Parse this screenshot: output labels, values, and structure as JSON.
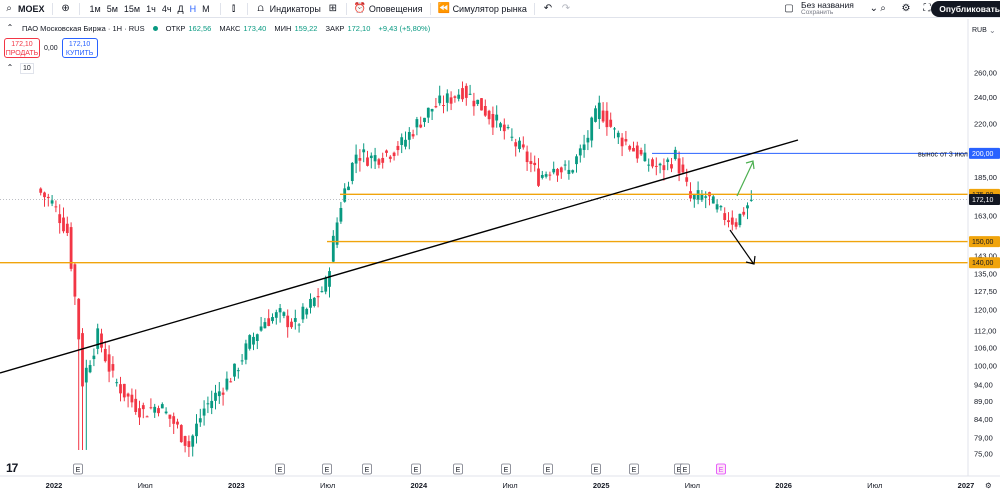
{
  "toolbar": {
    "symbol": "MOEX",
    "timeframes": [
      "1м",
      "5м",
      "15м",
      "1ч",
      "4ч",
      "Д",
      "Н",
      "М"
    ],
    "active_timeframe": "Н",
    "indicators_label": "Индикаторы",
    "alerts_label": "Оповещения",
    "replay_label": "Симулятор рынка",
    "layout_title": "Без названия",
    "layout_status": "Сохранить",
    "publish_label": "Опубликовать"
  },
  "legend": {
    "name": "ПАО Московская Биржа · 1Н · RUS",
    "open_label": "ОТКР",
    "open": "162,56",
    "high_label": "МАКС",
    "high": "173,40",
    "low_label": "МИН",
    "low": "159,22",
    "close_label": "ЗАКР",
    "close": "172,10",
    "change": "+9,43 (+5,80%)"
  },
  "trade": {
    "sell_price": "172,10",
    "sell_label": "ПРОДАТЬ",
    "spread": "0,00",
    "buy_price": "172,10",
    "buy_label": "КУПИТЬ"
  },
  "volume_indicator": {
    "value": "10"
  },
  "currency": "RUB",
  "colors": {
    "up": "#089981",
    "down": "#f23645",
    "level": "#f0a40c",
    "blue_level": "#2962ff",
    "trend": "#000000",
    "arrow_up": "#4caf50"
  },
  "y_axis_ticks": [
    "260,00",
    "240,00",
    "220,00",
    "200,00",
    "185,00",
    "175,00",
    "163,00",
    "150,00",
    "143,00",
    "135,00",
    "127,50",
    "120,00",
    "112,00",
    "106,00",
    "100,00",
    "94,00",
    "89,00",
    "84,00",
    "79,00",
    "75,00"
  ],
  "x_axis_ticks": [
    "2022",
    "Июл",
    "2023",
    "Июл",
    "2024",
    "Июл",
    "2025",
    "Июл",
    "2026",
    "Июл",
    "2027"
  ],
  "price_tags": [
    {
      "value": "200,00",
      "style": "blue"
    },
    {
      "value": "175,00",
      "style": "orange"
    },
    {
      "value": "172,10",
      "style": "current"
    },
    {
      "value": "150,00",
      "style": "orange"
    },
    {
      "value": "140,00",
      "style": "orange"
    }
  ],
  "annotation": "вынос от 3 июля",
  "earnings_marker": "E",
  "chart_data": {
    "type": "candlestick",
    "symbol": "MOEX",
    "interval": "1W",
    "horizontal_levels": [
      200,
      175,
      150,
      140
    ],
    "current_price": 172.1,
    "close_series": [
      {
        "x": "2021-12",
        "close": 178
      },
      {
        "x": "2022-01",
        "close": 170
      },
      {
        "x": "2022-02",
        "close": 155
      },
      {
        "x": "2022-03",
        "close": 95
      },
      {
        "x": "2022-04",
        "close": 110
      },
      {
        "x": "2022-05",
        "close": 96
      },
      {
        "x": "2022-06",
        "close": 90
      },
      {
        "x": "2022-07",
        "close": 86
      },
      {
        "x": "2022-08",
        "close": 88
      },
      {
        "x": "2022-09",
        "close": 83
      },
      {
        "x": "2022-10",
        "close": 77
      },
      {
        "x": "2022-11",
        "close": 87
      },
      {
        "x": "2022-12",
        "close": 92
      },
      {
        "x": "2023-01",
        "close": 98
      },
      {
        "x": "2023-02",
        "close": 108
      },
      {
        "x": "2023-03",
        "close": 116
      },
      {
        "x": "2023-04",
        "close": 118
      },
      {
        "x": "2023-05",
        "close": 114
      },
      {
        "x": "2023-06",
        "close": 122
      },
      {
        "x": "2023-07",
        "close": 130
      },
      {
        "x": "2023-08",
        "close": 170
      },
      {
        "x": "2023-09",
        "close": 200
      },
      {
        "x": "2023-10",
        "close": 197
      },
      {
        "x": "2023-11",
        "close": 200
      },
      {
        "x": "2023-12",
        "close": 206
      },
      {
        "x": "2024-01",
        "close": 220
      },
      {
        "x": "2024-02",
        "close": 232
      },
      {
        "x": "2024-03",
        "close": 238
      },
      {
        "x": "2024-04",
        "close": 246
      },
      {
        "x": "2024-05",
        "close": 236
      },
      {
        "x": "2024-06",
        "close": 224
      },
      {
        "x": "2024-07",
        "close": 212
      },
      {
        "x": "2024-08",
        "close": 200
      },
      {
        "x": "2024-09",
        "close": 185
      },
      {
        "x": "2024-10",
        "close": 192
      },
      {
        "x": "2024-11",
        "close": 188
      },
      {
        "x": "2024-12",
        "close": 205
      },
      {
        "x": "2025-01",
        "close": 232
      },
      {
        "x": "2025-02",
        "close": 214
      },
      {
        "x": "2025-03",
        "close": 205
      },
      {
        "x": "2025-04",
        "close": 195
      },
      {
        "x": "2025-05",
        "close": 190
      },
      {
        "x": "2025-06",
        "close": 198
      },
      {
        "x": "2025-07",
        "close": 172
      },
      {
        "x": "2025-08",
        "close": 174
      },
      {
        "x": "2025-09",
        "close": 164
      },
      {
        "x": "2025-10",
        "close": 160
      },
      {
        "x": "2025-11",
        "close": 172.1
      }
    ]
  }
}
